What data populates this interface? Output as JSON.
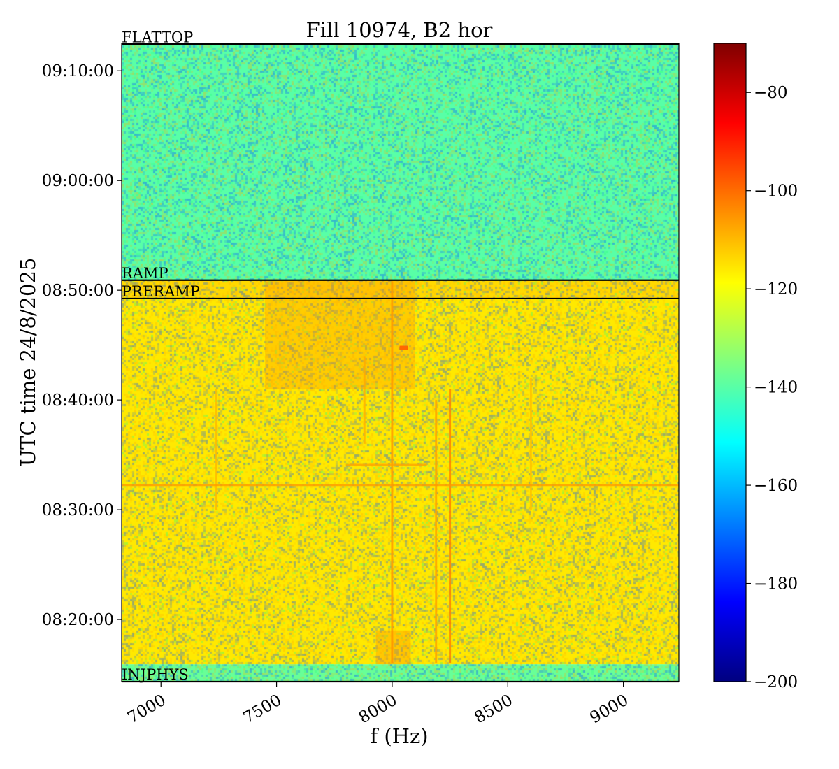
{
  "chart_data": {
    "type": "heatmap",
    "title": "Fill 10974, B2 hor",
    "xlabel": "f (Hz)",
    "ylabel": "UTC time 24/8/2025",
    "x_range_hz": [
      6830,
      9240
    ],
    "x_ticks": [
      {
        "label": "7000",
        "value": 7000
      },
      {
        "label": "7500",
        "value": 7500
      },
      {
        "label": "8000",
        "value": 8000
      },
      {
        "label": "8500",
        "value": 8500
      },
      {
        "label": "9000",
        "value": 9000
      }
    ],
    "y_range_time": [
      "08:14:20",
      "09:12:30"
    ],
    "y_ticks": [
      {
        "label": "08:20:00",
        "value": "08:20:00"
      },
      {
        "label": "08:30:00",
        "value": "08:30:00"
      },
      {
        "label": "08:40:00",
        "value": "08:40:00"
      },
      {
        "label": "08:50:00",
        "value": "08:50:00"
      },
      {
        "label": "09:00:00",
        "value": "09:00:00"
      },
      {
        "label": "09:10:00",
        "value": "09:10:00"
      }
    ],
    "colormap": "jet",
    "colorbar": {
      "range": [
        -200,
        -70
      ],
      "ticks": [
        {
          "label": "−80",
          "value": -80
        },
        {
          "label": "−100",
          "value": -100
        },
        {
          "label": "−120",
          "value": -120
        },
        {
          "label": "−140",
          "value": -140
        },
        {
          "label": "−160",
          "value": -160
        },
        {
          "label": "−180",
          "value": -180
        },
        {
          "label": "−200",
          "value": -200
        }
      ]
    },
    "phases": [
      {
        "label": "INJPHYS",
        "time": "08:14:20"
      },
      {
        "label": "PRERAMP",
        "time": "08:49:15"
      },
      {
        "label": "RAMP",
        "time": "08:50:55"
      },
      {
        "label": "FLATTOP",
        "time": "09:12:25"
      }
    ],
    "regions": [
      {
        "from": "08:14:20",
        "to": "08:15:55",
        "level_db": -138
      },
      {
        "from": "08:15:55",
        "to": "08:49:15",
        "level_db": -116
      },
      {
        "from": "08:49:15",
        "to": "08:50:55",
        "level_db": -114
      },
      {
        "from": "08:50:55",
        "to": "09:12:30",
        "level_db": -140
      }
    ],
    "features": [
      {
        "kind": "line",
        "orientation": "vertical",
        "f_hz": 8250,
        "from": "08:16:00",
        "to": "08:41:00",
        "level_db": -103
      },
      {
        "kind": "line",
        "orientation": "vertical",
        "f_hz": 8190,
        "from": "08:16:00",
        "to": "08:40:00",
        "level_db": -107
      },
      {
        "kind": "line",
        "orientation": "vertical",
        "f_hz": 8000,
        "from": "08:16:00",
        "to": "08:50:50",
        "level_db": -106
      },
      {
        "kind": "line",
        "orientation": "vertical",
        "f_hz": 7240,
        "from": "08:30:00",
        "to": "08:41:00",
        "level_db": -110
      },
      {
        "kind": "line",
        "orientation": "vertical",
        "f_hz": 8600,
        "from": "08:30:00",
        "to": "08:42:00",
        "level_db": -111
      },
      {
        "kind": "line",
        "orientation": "vertical",
        "f_hz": 7880,
        "from": "08:36:00",
        "to": "08:44:00",
        "level_db": -109
      },
      {
        "kind": "line",
        "orientation": "horizontal",
        "time": "08:32:15",
        "f_from": 6830,
        "f_to": 9240,
        "level_db": -106
      },
      {
        "kind": "line",
        "orientation": "horizontal",
        "time": "08:34:05",
        "f_from": 7800,
        "f_to": 8150,
        "level_db": -107
      },
      {
        "kind": "spot",
        "f_hz": 8050,
        "time": "08:44:45",
        "level_db": -96
      },
      {
        "kind": "blob",
        "f_from": 7450,
        "f_to": 8100,
        "time_from": "08:41:00",
        "time_to": "08:50:50",
        "level_db": -106
      },
      {
        "kind": "blob",
        "f_from": 7930,
        "f_to": 8080,
        "time_from": "08:15:55",
        "time_to": "08:19:00",
        "level_db": -104
      }
    ]
  }
}
